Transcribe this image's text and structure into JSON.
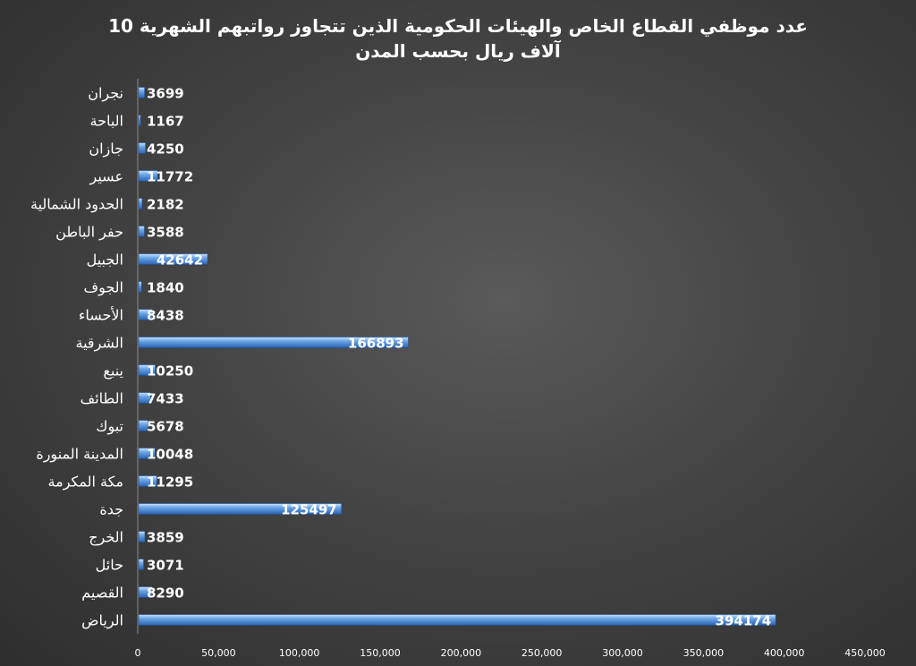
{
  "chart_data": {
    "type": "bar",
    "orientation": "horizontal",
    "title_line1": "عدد موظفي القطاع الخاص والهيئات الحكومية الذين تتجاوز رواتبهم الشهرية 10",
    "title_line2": "آلاف ريال بحسب المدن",
    "categories": [
      "نجران",
      "الباحة",
      "جازان",
      "عسير",
      "الحدود الشمالية",
      "حفر الباطن",
      "الجبيل",
      "الجوف",
      "الأحساء",
      "الشرقية",
      "ينبع",
      "الطائف",
      "تبوك",
      "المدينة المنورة",
      "مكة المكرمة",
      "جدة",
      "الخرج",
      "حائل",
      "القصيم",
      "الرياض"
    ],
    "values": [
      3699,
      1167,
      4250,
      11772,
      2182,
      3588,
      42642,
      1840,
      8438,
      166893,
      10250,
      7433,
      5678,
      10048,
      11295,
      125497,
      3859,
      3071,
      8290,
      394174
    ],
    "value_labels": [
      "3699",
      "1167",
      "4250",
      "11772",
      "2182",
      "3588",
      "42642",
      "1840",
      "8438",
      "166893",
      "10250",
      "7433",
      "5678",
      "10048",
      "11295",
      "125497",
      "3859",
      "3071",
      "8290",
      "394174"
    ],
    "xlim": [
      0,
      450000
    ],
    "x_ticks": [
      0,
      50000,
      100000,
      150000,
      200000,
      250000,
      300000,
      350000,
      400000,
      450000
    ],
    "x_tick_labels": [
      "0",
      "50,000",
      "100,000",
      "150,000",
      "200,000",
      "250,000",
      "300,000",
      "350,000",
      "400,000",
      "450,000"
    ],
    "grid": false,
    "legend": "none",
    "bar_color": "#4a90d9"
  }
}
